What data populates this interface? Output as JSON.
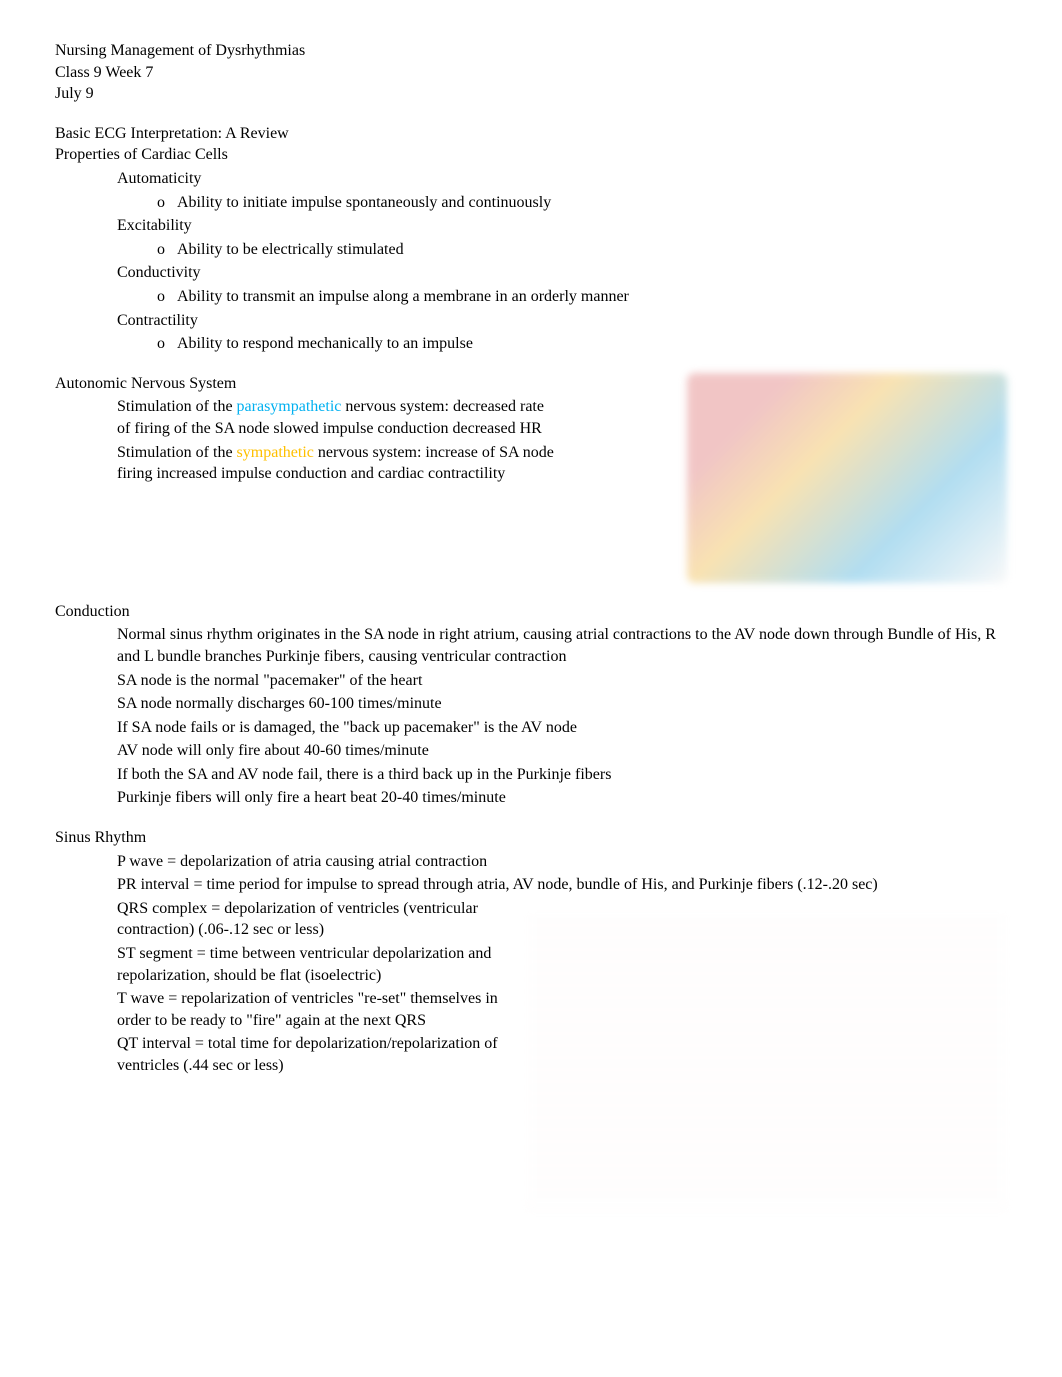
{
  "header": {
    "line1": "Nursing Management of Dysrhythmias",
    "line2": "Class 9 Week 7",
    "line3": "July 9"
  },
  "section1": {
    "title1": "Basic ECG Interpretation: A Review",
    "title2": "Properties of Cardiac Cells",
    "items": [
      {
        "label": "Automaticity",
        "sub": "Ability to initiate impulse spontaneously and continuously"
      },
      {
        "label": "Excitability",
        "sub": "Ability to be electrically stimulated"
      },
      {
        "label": "Conductivity",
        "sub": "Ability to transmit an impulse along a membrane in an orderly manner"
      },
      {
        "label": "Contractility",
        "sub": "Ability to respond mechanically to an impulse"
      }
    ]
  },
  "section2": {
    "title": "Autonomic Nervous System",
    "item1_pre": "Stimulation of the ",
    "item1_colored": "parasympathetic",
    "item1_post": " nervous system: decreased rate of firing of the SA node ",
    "item1_mid": " slowed impulse conduction ",
    "item1_end": " decreased HR",
    "item2_pre": "Stimulation of the ",
    "item2_colored": "sympathetic",
    "item2_post": " nervous system: increase of SA node firing",
    "item2_end": " increased impulse conduction and cardiac contractility"
  },
  "section3": {
    "title": "Conduction",
    "item1_a": "Normal sinus rhythm originates in the SA node in right atrium, causing atrial contractions ",
    "item1_b": " to the AV node ",
    "item1_c": " down through Bundle of His, R and L bundle branches",
    "item1_d": " Purkinje fibers, causing ventricular contraction",
    "items_rest": [
      "SA node is the normal \"pacemaker\" of the heart",
      "SA node normally discharges 60-100 times/minute",
      "If SA node fails or is damaged, the \"back up pacemaker\" is the AV node",
      "AV node will only fire about 40-60 times/minute",
      "If both the SA and AV node fail, there is a third back up in the Purkinje fibers",
      "Purkinje fibers will only fire a heart beat 20-40 times/minute"
    ]
  },
  "section4": {
    "title": "Sinus Rhythm",
    "items": [
      "P wave = depolarization of atria causing atrial contraction",
      "PR interval = time period for impulse to spread through atria, AV node, bundle of His, and Purkinje fibers (.12-.20 sec)",
      "QRS complex = depolarization of ventricles (ventricular contraction) (.06-.12 sec or less)",
      "ST segment = time between ventricular depolarization and repolarization, should be flat (isoelectric)"
    ],
    "item_t_a": "T wave = repolarization of ventricles",
    "item_t_b": " \"re-set\" themselves in order to be ready to \"fire\" again at the next QRS",
    "item_last": "QT interval = total time for depolarization/repolarization of ventricles (.44 sec or less)"
  },
  "glyphs": {
    "main_bullet": "",
    "sub_bullet": "o",
    "arrow": ""
  },
  "colors": {
    "parasympathetic": "#00b0f0",
    "sympathetic": "#ffc000"
  }
}
